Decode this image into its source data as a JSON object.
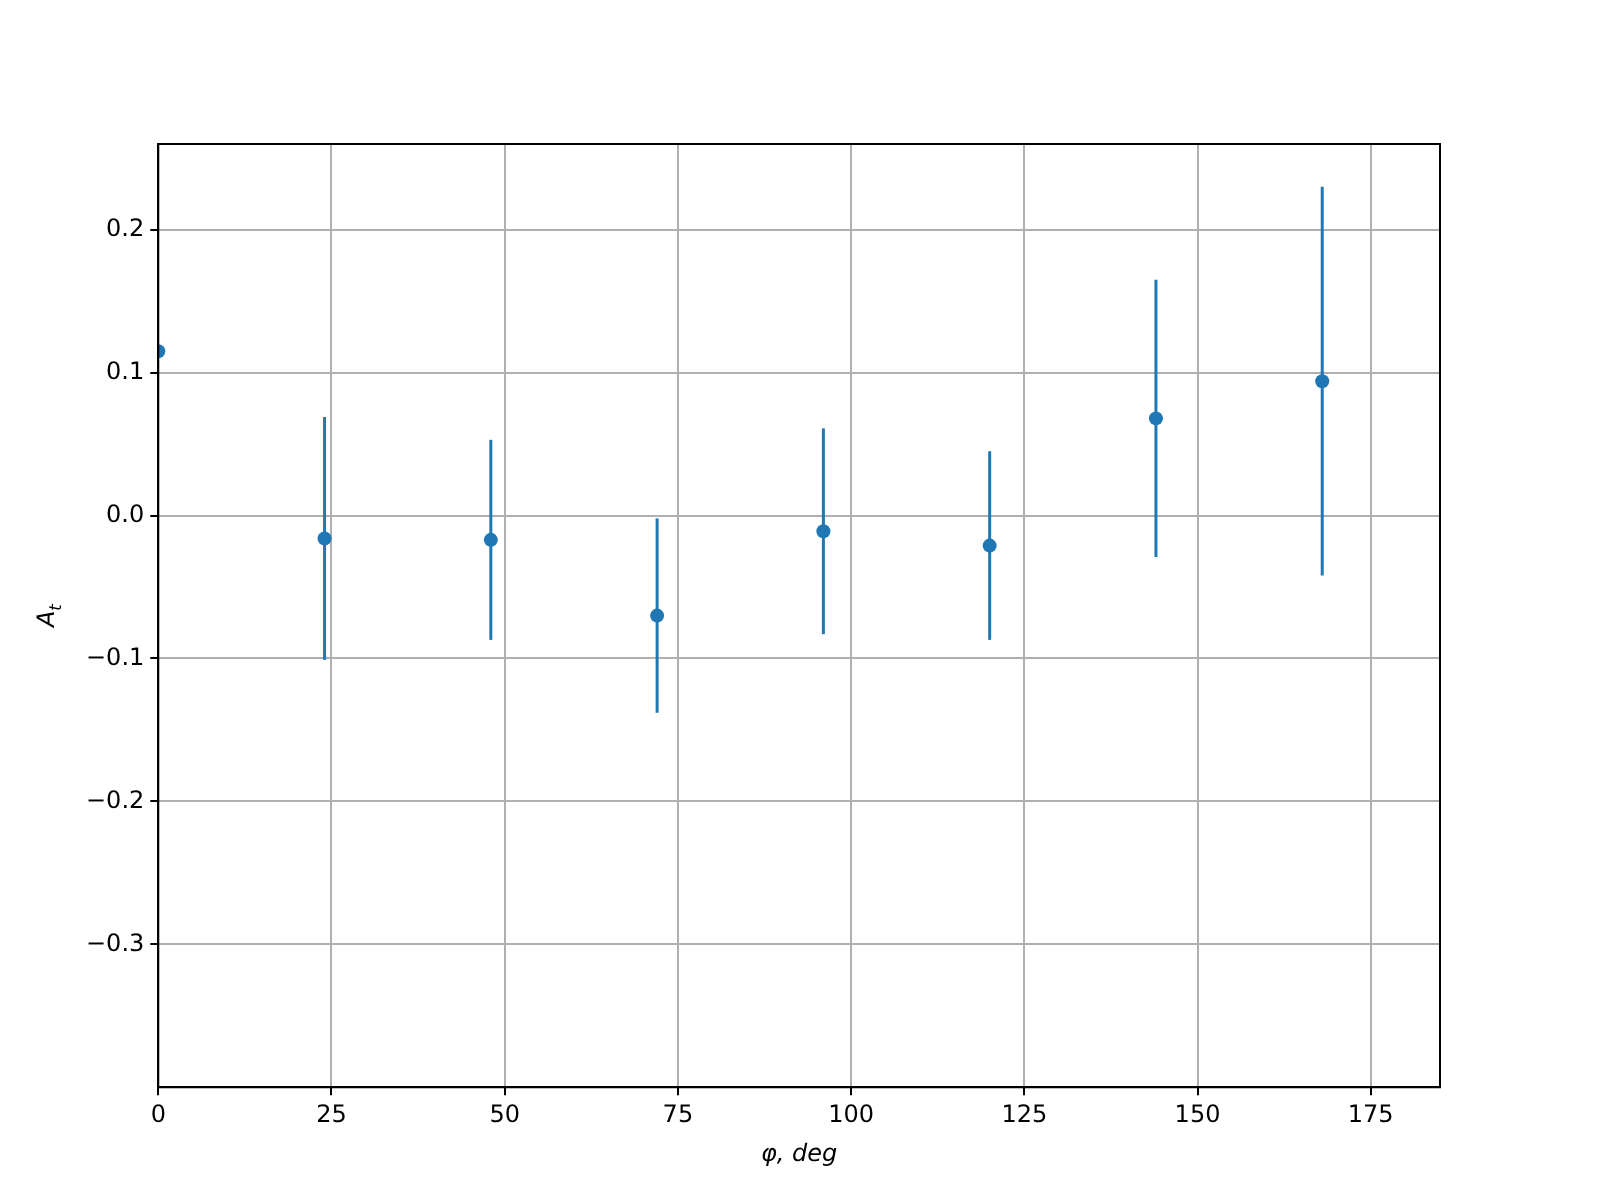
{
  "chart_data": {
    "type": "scatter",
    "xlabel": "φ, deg",
    "ylabel": "A$_{t}$",
    "x": [
      0,
      24,
      48,
      72,
      96,
      120,
      144,
      168
    ],
    "series": [
      {
        "color": "#1f77b4",
        "values": [
          0.115,
          -0.016,
          -0.017,
          -0.07,
          -0.011,
          -0.021,
          0.068,
          0.094
        ],
        "errors": [
          null,
          0.085,
          0.07,
          0.068,
          0.072,
          0.066,
          0.097,
          0.136
        ]
      }
    ],
    "xlim": [
      0,
      185
    ],
    "xticks": [
      0,
      25,
      50,
      75,
      100,
      125,
      150,
      175
    ],
    "ylim": [
      -0.4,
      0.26
    ],
    "yticks": [
      {
        "value": -0.3,
        "label": "−0.3"
      },
      {
        "value": -0.2,
        "label": "−0.2"
      },
      {
        "value": -0.1,
        "label": "−0.1"
      },
      {
        "value": 0,
        "label": "0.0"
      },
      {
        "value": 0.1,
        "label": "0.1"
      },
      {
        "value": 0.2,
        "label": "0.2"
      }
    ],
    "grid": true,
    "marker": "circle",
    "legend": false
  }
}
